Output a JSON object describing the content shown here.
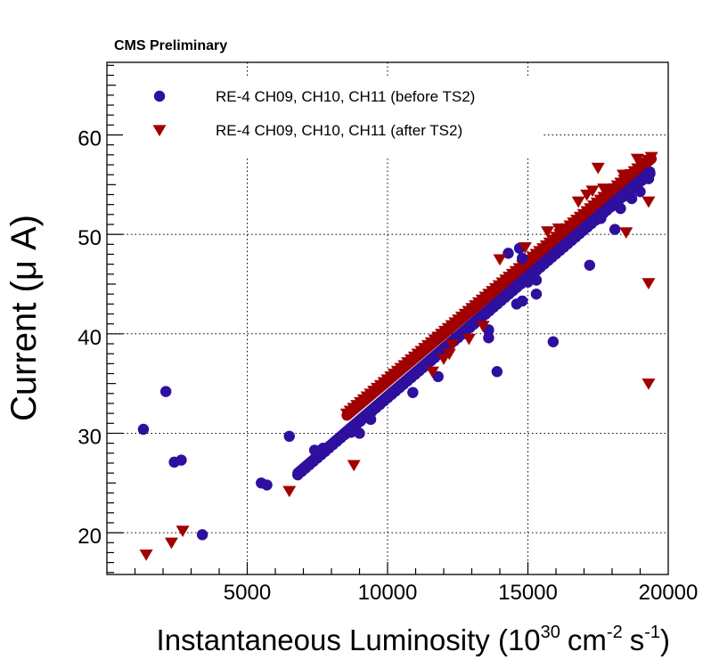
{
  "chart_data": {
    "type": "scatter",
    "header": "CMS Preliminary",
    "title": "",
    "xlabel": "Instantaneous Luminosity",
    "xlabel_unit_base": "10",
    "xlabel_unit_exp": "30",
    "xlabel_unit_cm": "cm",
    "xlabel_unit_cm_exp": "-2",
    "xlabel_unit_s": "s",
    "xlabel_unit_s_exp": "-1",
    "ylabel": "Current (μ A)",
    "xlim": [
      0,
      20000
    ],
    "ylim": [
      15.8,
      67.3
    ],
    "x_ticks": [
      5000,
      10000,
      15000,
      20000
    ],
    "x_tick_labels": [
      "5000",
      "10000",
      "15000",
      "20000"
    ],
    "y_ticks": [
      20,
      30,
      40,
      50,
      60
    ],
    "y_tick_labels": [
      "20",
      "30",
      "40",
      "50",
      "60"
    ],
    "grid": true,
    "legend_position": "top-left",
    "series": [
      {
        "name": "RE-4 CH09, CH10, CH11 (before TS2)",
        "color": "#2e0f9e",
        "marker": "circle",
        "trend_line": {
          "x": [
            6800,
            19350
          ],
          "y": [
            26.0,
            56.3
          ]
        },
        "points": [
          [
            1300,
            30.4
          ],
          [
            2100,
            34.2
          ],
          [
            2400,
            27.1
          ],
          [
            2650,
            27.3
          ],
          [
            3400,
            19.8
          ],
          [
            5500,
            25.0
          ],
          [
            5700,
            24.8
          ],
          [
            6500,
            29.7
          ],
          [
            7400,
            28.3
          ],
          [
            7700,
            28.5
          ],
          [
            8700,
            30.1
          ],
          [
            9000,
            30.0
          ],
          [
            9400,
            31.4
          ],
          [
            10900,
            34.1
          ],
          [
            11800,
            35.7
          ],
          [
            13600,
            40.4
          ],
          [
            13600,
            39.6
          ],
          [
            13900,
            36.2
          ],
          [
            14300,
            48.1
          ],
          [
            14700,
            48.6
          ],
          [
            14800,
            47.6
          ],
          [
            15000,
            45.2
          ],
          [
            15300,
            45.4
          ],
          [
            15300,
            44.0
          ],
          [
            14800,
            43.3
          ],
          [
            14600,
            43.0
          ],
          [
            15900,
            39.2
          ],
          [
            17200,
            46.9
          ],
          [
            17600,
            51.6
          ],
          [
            18100,
            50.5
          ],
          [
            18300,
            52.6
          ],
          [
            18700,
            53.6
          ],
          [
            19000,
            54.3
          ],
          [
            19300,
            55.6
          ]
        ]
      },
      {
        "name": "RE-4 CH09, CH10, CH11 (after TS2)",
        "color": "#a10000",
        "marker": "triangle-down",
        "trend_line": {
          "x": [
            8550,
            19400
          ],
          "y": [
            31.8,
            57.6
          ]
        },
        "points": [
          [
            1400,
            17.8
          ],
          [
            2300,
            19.0
          ],
          [
            2700,
            20.2
          ],
          [
            6500,
            24.2
          ],
          [
            8800,
            26.8
          ],
          [
            11600,
            36.2
          ],
          [
            12000,
            37.5
          ],
          [
            12200,
            38.0
          ],
          [
            12300,
            38.9
          ],
          [
            12900,
            39.5
          ],
          [
            13400,
            40.8
          ],
          [
            14000,
            47.5
          ],
          [
            14900,
            48.7
          ],
          [
            15700,
            50.3
          ],
          [
            16100,
            50.6
          ],
          [
            16800,
            53.3
          ],
          [
            17100,
            54.0
          ],
          [
            17300,
            54.4
          ],
          [
            17500,
            56.7
          ],
          [
            17700,
            54.6
          ],
          [
            18400,
            56.0
          ],
          [
            18500,
            50.2
          ],
          [
            18900,
            57.6
          ],
          [
            19300,
            53.3
          ],
          [
            19300,
            45.1
          ],
          [
            19300,
            35.0
          ]
        ]
      }
    ]
  }
}
